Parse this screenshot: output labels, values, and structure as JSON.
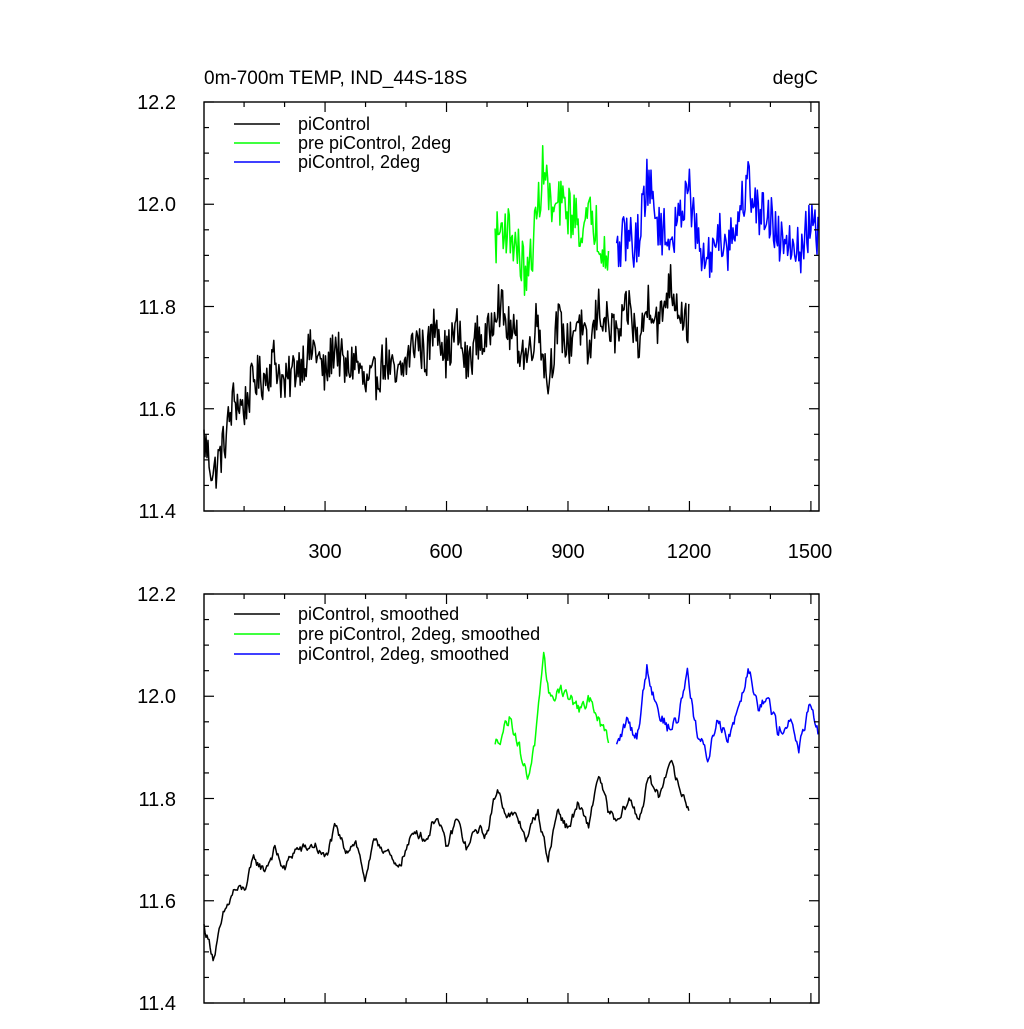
{
  "chart_data": [
    {
      "type": "line",
      "title_left": "0m-700m TEMP, IND_44S-18S",
      "title_right": "degC",
      "xlim": [
        1,
        1520
      ],
      "ylim": [
        11.4,
        12.2
      ],
      "x_ticks": [
        300,
        600,
        900,
        1200,
        1500
      ],
      "x_tick_labels": [
        "300",
        "600",
        "900",
        "1200",
        "1500"
      ],
      "y_ticks": [
        11.4,
        11.6,
        11.8,
        12.0,
        12.2
      ],
      "y_tick_labels": [
        "11.4",
        "11.6",
        "11.8",
        "12.0",
        "12.2"
      ],
      "legend": [
        "piControl",
        "pre piControl, 2deg",
        "piControl, 2deg"
      ],
      "series": [
        {
          "name": "piControl",
          "color": "#000000",
          "x": [
            1,
            25,
            50,
            75,
            100,
            125,
            150,
            175,
            200,
            225,
            250,
            275,
            300,
            325,
            350,
            375,
            400,
            425,
            450,
            475,
            500,
            525,
            550,
            575,
            600,
            625,
            650,
            675,
            700,
            725,
            750,
            775,
            800,
            825,
            850,
            875,
            900,
            925,
            950,
            975,
            1000,
            1025,
            1050,
            1075,
            1100,
            1125,
            1150,
            1175,
            1200
          ],
          "values": [
            11.54,
            11.47,
            11.53,
            11.62,
            11.6,
            11.66,
            11.66,
            11.7,
            11.64,
            11.68,
            11.7,
            11.72,
            11.66,
            11.73,
            11.67,
            11.7,
            11.64,
            11.66,
            11.7,
            11.65,
            11.69,
            11.74,
            11.7,
            11.78,
            11.7,
            11.76,
            11.68,
            11.74,
            11.73,
            11.82,
            11.76,
            11.73,
            11.7,
            11.78,
            11.65,
            11.77,
            11.72,
            11.78,
            11.7,
            11.8,
            11.76,
            11.74,
            11.8,
            11.72,
            11.82,
            11.76,
            11.85,
            11.8,
            11.76
          ],
          "noise": 0.045
        },
        {
          "name": "pre piControl, 2deg",
          "color": "#00ff00",
          "x": [
            720,
            740,
            760,
            780,
            800,
            820,
            840,
            860,
            880,
            900,
            920,
            940,
            960,
            980,
            1000
          ],
          "values": [
            11.93,
            11.96,
            11.94,
            11.9,
            11.85,
            11.96,
            12.08,
            11.98,
            12.0,
            11.99,
            11.97,
            11.95,
            11.98,
            11.93,
            11.92
          ],
          "noise": 0.05
        },
        {
          "name": "piControl, 2deg",
          "color": "#0000ff",
          "x": [
            1020,
            1045,
            1070,
            1095,
            1120,
            1145,
            1170,
            1195,
            1220,
            1245,
            1270,
            1295,
            1320,
            1345,
            1370,
            1395,
            1420,
            1445,
            1470,
            1495,
            1518
          ],
          "values": [
            11.9,
            11.94,
            11.92,
            12.05,
            11.97,
            11.93,
            11.95,
            12.05,
            11.92,
            11.88,
            11.95,
            11.92,
            11.97,
            12.05,
            11.98,
            11.99,
            11.93,
            11.95,
            11.9,
            11.96,
            11.93
          ],
          "noise": 0.05
        }
      ]
    },
    {
      "type": "line",
      "xlim": [
        1,
        1520
      ],
      "ylim": [
        11.4,
        12.2
      ],
      "y_ticks": [
        11.4,
        11.6,
        11.8,
        12.0,
        12.2
      ],
      "y_tick_labels": [
        "11.4",
        "11.6",
        "11.8",
        "12.0",
        "12.2"
      ],
      "legend": [
        "piControl, smoothed",
        "pre piControl, 2deg, smoothed",
        "piControl, 2deg, smoothed"
      ],
      "series": [
        {
          "name": "piControl, smoothed",
          "color": "#000000",
          "x": [
            1,
            25,
            50,
            75,
            100,
            125,
            150,
            175,
            200,
            225,
            250,
            275,
            300,
            325,
            350,
            375,
            400,
            425,
            450,
            475,
            500,
            525,
            550,
            575,
            600,
            625,
            650,
            675,
            700,
            725,
            750,
            775,
            800,
            825,
            850,
            875,
            900,
            925,
            950,
            975,
            1000,
            1025,
            1050,
            1075,
            1100,
            1125,
            1150,
            1175,
            1200
          ],
          "values": [
            11.55,
            11.49,
            11.57,
            11.62,
            11.62,
            11.68,
            11.66,
            11.7,
            11.66,
            11.7,
            11.7,
            11.71,
            11.68,
            11.74,
            11.7,
            11.72,
            11.64,
            11.72,
            11.7,
            11.66,
            11.7,
            11.74,
            11.72,
            11.77,
            11.7,
            11.76,
            11.7,
            11.74,
            11.73,
            11.82,
            11.77,
            11.76,
            11.72,
            11.78,
            11.68,
            11.78,
            11.74,
            11.79,
            11.74,
            11.85,
            11.77,
            11.75,
            11.8,
            11.76,
            11.84,
            11.8,
            11.88,
            11.82,
            11.78
          ],
          "noise": 0.015
        },
        {
          "name": "pre piControl, 2deg, smoothed",
          "color": "#00ff00",
          "x": [
            720,
            740,
            760,
            780,
            800,
            820,
            840,
            860,
            880,
            900,
            920,
            940,
            960,
            980,
            1000
          ],
          "values": [
            11.9,
            11.94,
            11.96,
            11.9,
            11.84,
            11.92,
            12.06,
            11.99,
            12.02,
            12.0,
            11.98,
            11.97,
            12.0,
            11.94,
            11.92
          ],
          "noise": 0.02
        },
        {
          "name": "piControl, 2deg, smoothed",
          "color": "#0000ff",
          "x": [
            1020,
            1045,
            1070,
            1095,
            1120,
            1145,
            1170,
            1195,
            1220,
            1245,
            1270,
            1295,
            1320,
            1345,
            1370,
            1395,
            1420,
            1445,
            1470,
            1495,
            1518
          ],
          "values": [
            11.9,
            11.95,
            11.92,
            12.06,
            11.98,
            11.94,
            11.95,
            12.05,
            11.92,
            11.88,
            11.96,
            11.92,
            11.98,
            12.06,
            11.99,
            11.99,
            11.93,
            11.96,
            11.9,
            11.97,
            11.93
          ],
          "noise": 0.02
        }
      ]
    }
  ]
}
